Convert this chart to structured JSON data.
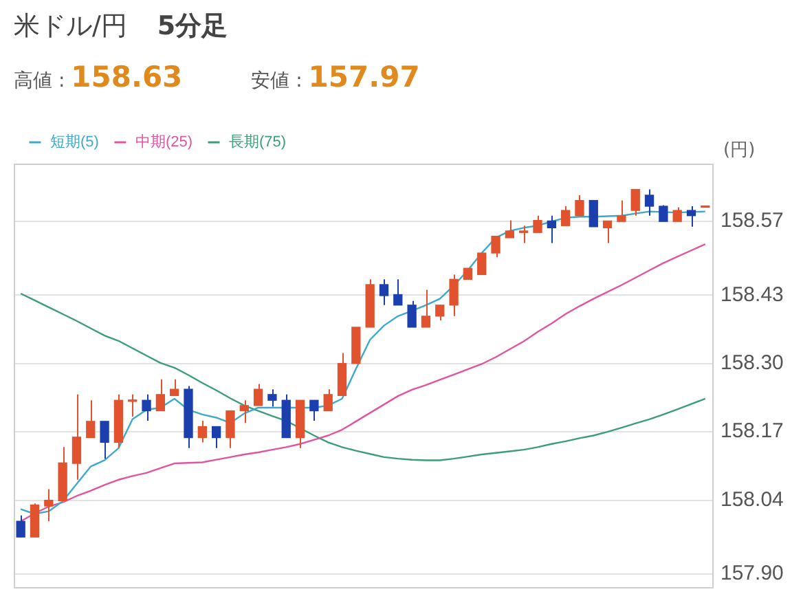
{
  "chart_data": {
    "type": "candlestick",
    "title": "米ドル/円",
    "subtitle": "5分足",
    "ylabel": "(円)",
    "annotations": [
      "高値 : 158.63",
      "安値 : 157.97"
    ],
    "categories": [
      null,
      null,
      null,
      null,
      null,
      null,
      null,
      null,
      null,
      null,
      null,
      null,
      null,
      null,
      null,
      null,
      null,
      null,
      null,
      null,
      null,
      null,
      null,
      null,
      null,
      null,
      null,
      null,
      null,
      null,
      null,
      null,
      null,
      null,
      null,
      null,
      null,
      null,
      null,
      null,
      null,
      null,
      null,
      null,
      null,
      null,
      null,
      null,
      null,
      null
    ],
    "ylim": [
      157.88,
      158.68
    ],
    "yticks": [
      {
        "value": 157.9,
        "label": "157.90"
      },
      158.04,
      158.17,
      {
        "value": 158.3,
        "label": "158.30"
      },
      158.43,
      158.57
    ],
    "tick_labels": "y",
    "grid": "y",
    "legend": "top left",
    "marker": "none",
    "ohlc": [
      [
        158.0,
        158.011,
        157.97,
        157.97
      ],
      [
        157.97,
        158.034,
        157.97,
        158.031
      ],
      [
        158.029,
        158.061,
        158.0,
        158.04
      ],
      [
        158.039,
        158.141,
        158.039,
        158.111
      ],
      [
        158.11,
        158.241,
        158.079,
        158.16
      ],
      [
        158.159,
        158.23,
        158.159,
        158.19
      ],
      [
        158.19,
        158.19,
        158.119,
        158.15
      ],
      [
        158.15,
        158.241,
        158.139,
        158.23
      ],
      [
        158.228,
        158.241,
        158.199,
        158.23
      ],
      [
        158.23,
        158.241,
        158.191,
        158.21
      ],
      [
        158.21,
        158.27,
        158.21,
        158.241
      ],
      [
        158.239,
        158.27,
        158.239,
        158.251
      ],
      [
        158.251,
        158.257,
        158.139,
        158.159
      ],
      [
        158.159,
        158.191,
        158.15,
        158.18
      ],
      [
        158.18,
        158.18,
        158.139,
        158.159
      ],
      [
        158.159,
        158.21,
        158.139,
        158.21
      ],
      [
        158.21,
        158.23,
        158.187,
        158.22
      ],
      [
        158.22,
        158.261,
        158.22,
        158.251
      ],
      [
        158.241,
        158.251,
        158.218,
        158.23
      ],
      [
        158.23,
        158.241,
        158.159,
        158.159
      ],
      [
        158.159,
        158.23,
        158.139,
        158.23
      ],
      [
        158.23,
        158.23,
        158.191,
        158.21
      ],
      [
        158.21,
        158.251,
        158.21,
        158.241
      ],
      [
        158.239,
        158.32,
        158.239,
        158.3
      ],
      [
        158.3,
        158.369,
        158.3,
        158.369
      ],
      [
        158.369,
        158.46,
        158.369,
        158.45
      ],
      [
        158.45,
        158.46,
        158.411,
        158.429
      ],
      [
        158.431,
        158.46,
        158.411,
        158.411
      ],
      [
        158.411,
        158.419,
        158.369,
        158.369
      ],
      [
        158.369,
        158.44,
        158.369,
        158.39
      ],
      [
        158.39,
        158.411,
        158.382,
        158.411
      ],
      [
        158.411,
        158.469,
        158.39,
        158.46
      ],
      [
        158.46,
        158.481,
        158.46,
        158.481
      ],
      [
        158.469,
        158.51,
        158.469,
        158.51
      ],
      [
        158.51,
        158.542,
        158.502,
        158.542
      ],
      [
        158.539,
        158.572,
        158.539,
        158.552
      ],
      [
        158.549,
        158.562,
        158.529,
        158.552
      ],
      [
        158.549,
        158.581,
        158.549,
        158.572
      ],
      [
        158.571,
        158.581,
        158.529,
        158.558
      ],
      [
        158.562,
        158.599,
        158.562,
        158.591
      ],
      [
        158.581,
        158.62,
        158.581,
        158.61
      ],
      [
        158.61,
        158.61,
        158.56,
        158.56
      ],
      [
        158.558,
        158.571,
        158.529,
        158.571
      ],
      [
        158.57,
        158.61,
        158.57,
        158.581
      ],
      [
        158.591,
        158.631,
        158.581,
        158.631
      ],
      [
        158.62,
        158.631,
        158.581,
        158.599
      ],
      [
        158.599,
        158.601,
        158.57,
        158.57
      ],
      [
        158.57,
        158.597,
        158.57,
        158.591
      ],
      [
        158.591,
        158.599,
        158.56,
        158.581
      ],
      [
        158.597,
        158.599,
        158.597,
        158.599
      ]
    ],
    "colors": [
      "#1c3fae",
      "#e0532e",
      "#e0532e",
      "#e0532e",
      "#e0532e",
      "#e0532e",
      "#1c3fae",
      "#e0532e",
      "#e0532e",
      "#1c3fae",
      "#e0532e",
      "#e0532e",
      "#1c3fae",
      "#e0532e",
      "#1c3fae",
      "#e0532e",
      "#e0532e",
      "#e0532e",
      "#1c3fae",
      "#1c3fae",
      "#e0532e",
      "#1c3fae",
      "#e0532e",
      "#e0532e",
      "#e0532e",
      "#e0532e",
      "#1c3fae",
      "#1c3fae",
      "#1c3fae",
      "#e0532e",
      "#e0532e",
      "#e0532e",
      "#e0532e",
      "#e0532e",
      "#e0532e",
      "#e0532e",
      "#e0532e",
      "#e0532e",
      "#1c3fae",
      "#e0532e",
      "#e0532e",
      "#1c3fae",
      "#e0532e",
      "#e0532e",
      "#e0532e",
      "#1c3fae",
      "#1c3fae",
      "#e0532e",
      "#1c3fae",
      "#e0532e"
    ],
    "series": [
      {
        "name": "短期(5)",
        "type": "line",
        "color": "#3fa9c9",
        "values": [
          158.023,
          158.014,
          158.019,
          158.038,
          158.071,
          158.104,
          158.116,
          158.139,
          158.194,
          158.212,
          158.216,
          158.233,
          158.212,
          158.203,
          158.197,
          158.187,
          158.205,
          158.216,
          158.216,
          158.216,
          158.216,
          158.216,
          158.22,
          158.233,
          158.29,
          158.345,
          158.372,
          158.39,
          158.4,
          158.411,
          158.423,
          158.448,
          158.477,
          158.51,
          158.539,
          158.552,
          158.558,
          158.562,
          158.57,
          158.577,
          158.579,
          158.579,
          158.58,
          158.581,
          158.585,
          158.589,
          158.588,
          158.587,
          158.588,
          158.589
        ]
      },
      {
        "name": "中期(25)",
        "type": "line",
        "color": "#e0559e",
        "values": [
          158.0,
          158.015,
          158.028,
          158.036,
          158.048,
          158.058,
          158.069,
          158.079,
          158.086,
          158.092,
          158.101,
          158.11,
          158.111,
          158.112,
          158.117,
          158.122,
          158.127,
          158.131,
          158.136,
          158.141,
          158.147,
          158.155,
          158.163,
          158.174,
          158.19,
          158.206,
          158.222,
          158.238,
          158.25,
          158.259,
          158.269,
          158.279,
          158.289,
          158.299,
          158.312,
          158.327,
          158.342,
          158.36,
          158.376,
          158.394,
          158.409,
          158.423,
          158.436,
          158.449,
          158.463,
          158.477,
          158.491,
          158.503,
          158.515,
          158.527
        ]
      },
      {
        "name": "長期(75)",
        "type": "line",
        "color": "#3c9e78",
        "values": [
          158.433,
          158.42,
          158.407,
          158.394,
          158.381,
          158.367,
          158.353,
          158.343,
          158.329,
          158.315,
          158.301,
          158.292,
          158.278,
          158.263,
          158.249,
          158.234,
          158.22,
          158.21,
          158.2,
          158.191,
          158.177,
          158.163,
          158.15,
          158.141,
          158.134,
          158.128,
          158.122,
          158.119,
          158.117,
          158.116,
          158.116,
          158.119,
          158.123,
          158.127,
          158.13,
          158.133,
          158.136,
          158.141,
          158.147,
          158.152,
          158.158,
          158.163,
          158.17,
          158.178,
          158.186,
          158.194,
          158.203,
          158.213,
          158.223,
          158.233
        ]
      }
    ]
  }
}
